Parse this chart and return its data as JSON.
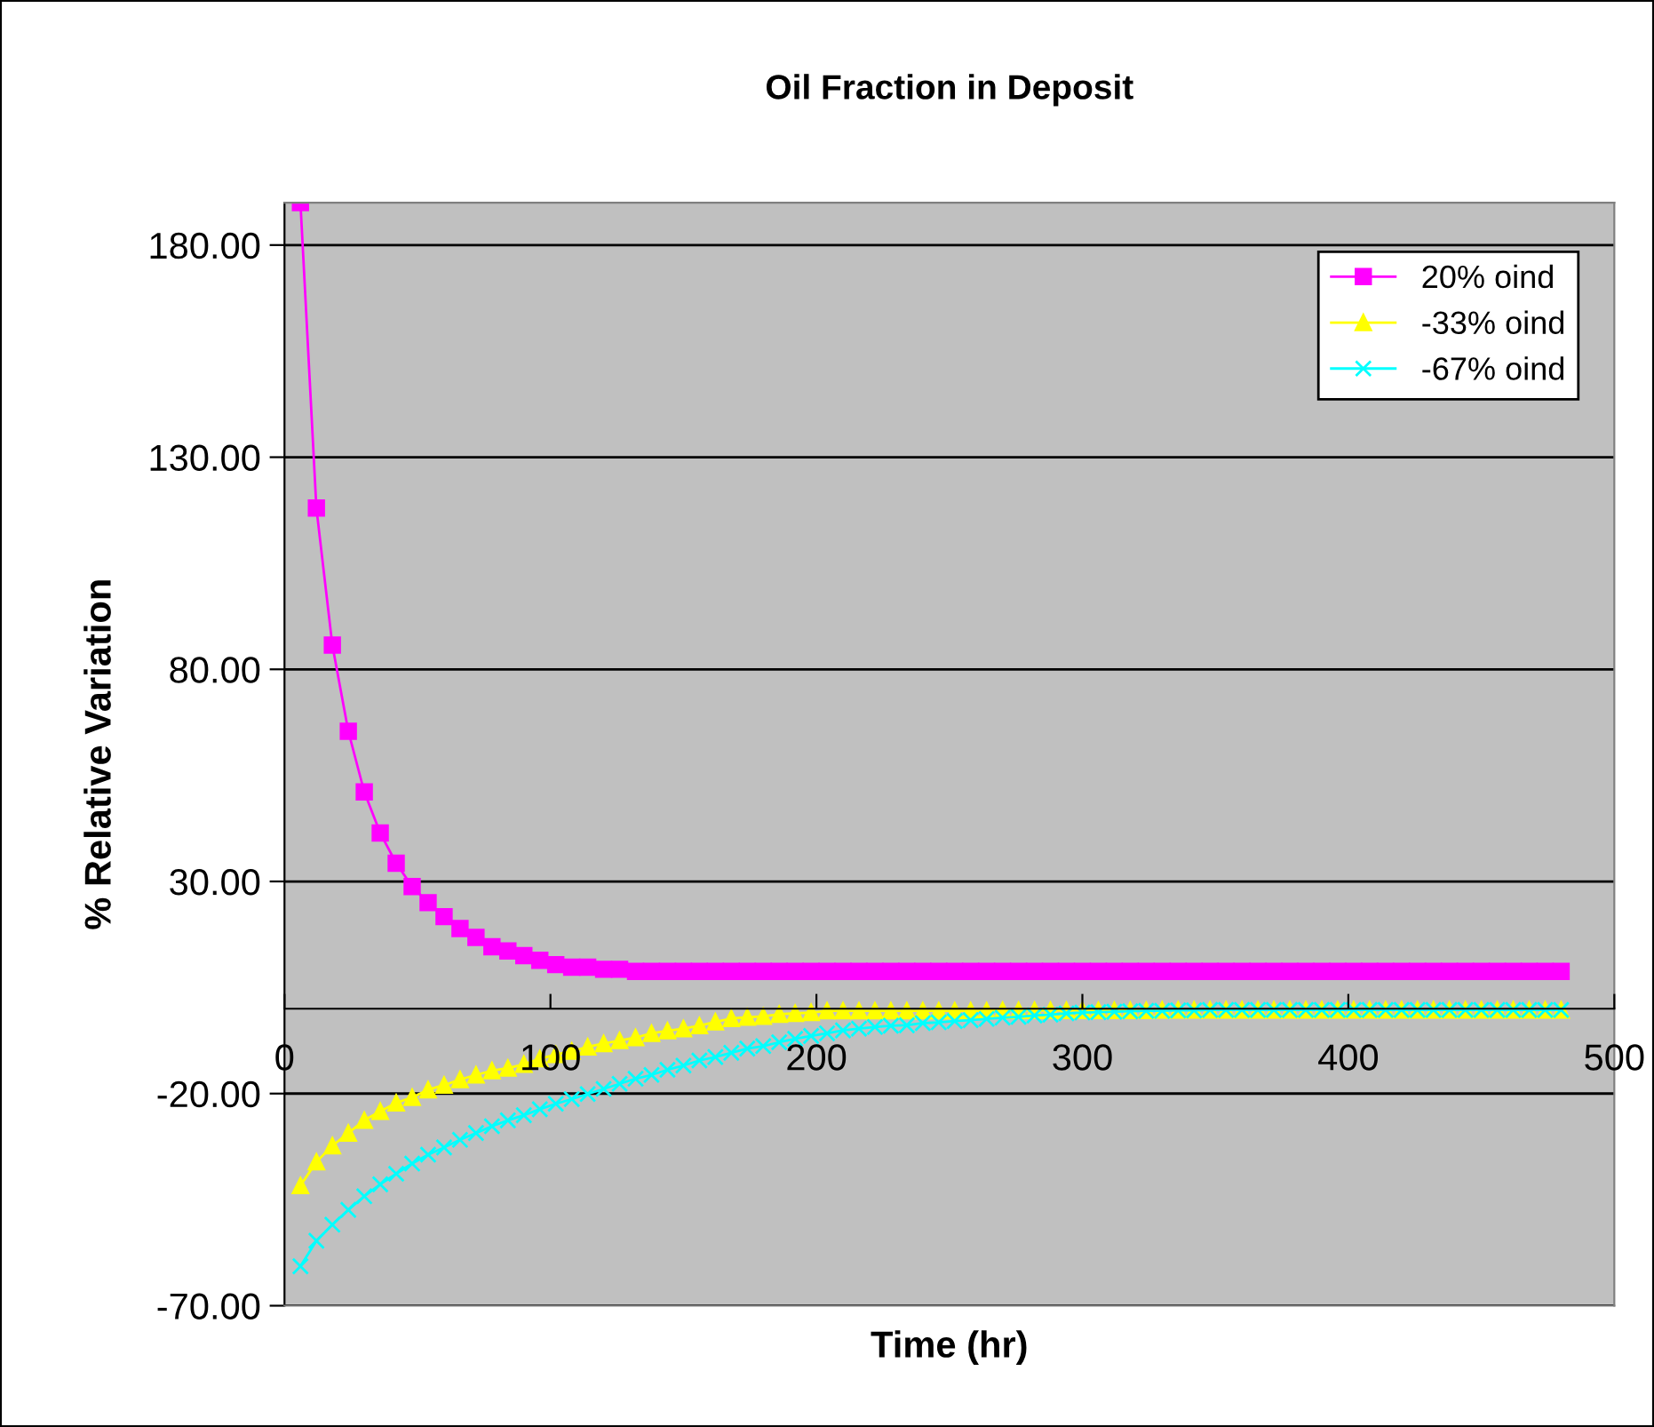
{
  "chart_data": {
    "type": "line",
    "title": "Oil Fraction in Deposit",
    "xlabel": "Time (hr)",
    "ylabel": "% Relative Variation",
    "x": [
      6,
      12,
      18,
      24,
      30,
      36,
      42,
      48,
      54,
      60,
      66,
      72,
      78,
      84,
      90,
      96,
      102,
      108,
      114,
      120,
      126,
      132,
      138,
      144,
      150,
      156,
      162,
      168,
      174,
      180,
      186,
      192,
      198,
      204,
      210,
      216,
      222,
      228,
      234,
      240,
      246,
      252,
      258,
      264,
      270,
      276,
      282,
      288,
      294,
      300,
      306,
      312,
      318,
      324,
      330,
      336,
      342,
      348,
      354,
      360,
      366,
      372,
      378,
      384,
      390,
      396,
      402,
      408,
      414,
      420,
      426,
      432,
      438,
      444,
      450,
      456,
      462,
      468,
      474,
      480
    ],
    "series": [
      {
        "name": "20% oind",
        "color": "#ff00ff",
        "marker": "square",
        "values": [
          190,
          118,
          85.7,
          65.4,
          51.1,
          41.4,
          34.3,
          28.8,
          25.0,
          21.7,
          18.9,
          16.8,
          14.6,
          13.6,
          12.5,
          11.4,
          10.4,
          9.8,
          9.8,
          9.3,
          9.3,
          8.8,
          8.8,
          8.8,
          8.8,
          8.8,
          8.8,
          8.8,
          8.8,
          8.8,
          8.8,
          8.8,
          8.8,
          8.8,
          8.8,
          8.8,
          8.8,
          8.8,
          8.8,
          8.8,
          8.8,
          8.8,
          8.8,
          8.8,
          8.8,
          8.8,
          8.8,
          8.8,
          8.8,
          8.8,
          8.8,
          8.8,
          8.8,
          8.8,
          8.8,
          8.8,
          8.8,
          8.8,
          8.8,
          8.8,
          8.8,
          8.8,
          8.8,
          8.8,
          8.8,
          8.8,
          8.8,
          8.8,
          8.8,
          8.8,
          8.8,
          8.8,
          8.8,
          8.8,
          8.8,
          8.8,
          8.8,
          8.8,
          8.8,
          8.8
        ]
      },
      {
        "name": "-33% oind",
        "color": "#ffff00",
        "marker": "triangle",
        "values": [
          -41.7,
          -36.1,
          -32.3,
          -29.3,
          -26.3,
          -24.2,
          -22.2,
          -20.9,
          -19.1,
          -18.0,
          -16.7,
          -15.6,
          -14.6,
          -14.0,
          -13.1,
          -11.8,
          -10.8,
          -10.0,
          -9.0,
          -8.2,
          -7.5,
          -6.8,
          -5.8,
          -5.2,
          -4.7,
          -4.0,
          -3.1,
          -2.3,
          -2.0,
          -1.8,
          -1.3,
          -1.1,
          -0.9,
          -0.5,
          -0.5,
          -0.5,
          -0.5,
          -0.5,
          -0.5,
          -0.5,
          -0.5,
          -0.5,
          -0.5,
          -0.5,
          -0.4,
          -0.4,
          -0.4,
          -0.4,
          -0.4,
          -0.4,
          -0.4,
          -0.4,
          -0.4,
          -0.4,
          -0.3,
          -0.3,
          -0.3,
          -0.3,
          -0.3,
          -0.3,
          -0.3,
          -0.3,
          -0.3,
          -0.3,
          -0.3,
          -0.3,
          -0.3,
          -0.3,
          -0.3,
          -0.3,
          -0.3,
          -0.3,
          -0.3,
          -0.3,
          -0.3,
          -0.3,
          -0.3,
          -0.3,
          -0.3,
          -0.3
        ]
      },
      {
        "name": "-67% oind",
        "color": "#00ffff",
        "marker": "cross",
        "values": [
          -60.7,
          -54.7,
          -50.9,
          -47.4,
          -44.2,
          -41.4,
          -38.9,
          -36.5,
          -34.4,
          -32.7,
          -30.9,
          -29.3,
          -27.7,
          -26.3,
          -25.1,
          -23.7,
          -22.4,
          -21.3,
          -20.1,
          -18.9,
          -17.7,
          -16.5,
          -15.6,
          -14.4,
          -13.4,
          -12.2,
          -11.4,
          -10.4,
          -9.4,
          -8.8,
          -7.9,
          -7.1,
          -6.4,
          -5.8,
          -5.1,
          -4.7,
          -4.3,
          -4.0,
          -3.9,
          -3.4,
          -3.2,
          -2.9,
          -2.7,
          -2.4,
          -2.1,
          -1.9,
          -1.6,
          -1.4,
          -1.1,
          -0.9,
          -0.8,
          -0.7,
          -0.6,
          -0.5,
          -0.5,
          -0.4,
          -0.4,
          -0.3,
          -0.3,
          -0.3,
          -0.3,
          -0.3,
          -0.3,
          -0.3,
          -0.3,
          -0.3,
          -0.3,
          -0.3,
          -0.3,
          -0.3,
          -0.3,
          -0.3,
          -0.3,
          -0.3,
          -0.3,
          -0.3,
          -0.3,
          -0.3,
          -0.3,
          -0.3
        ]
      }
    ],
    "xlim": [
      0,
      500
    ],
    "xticks": [
      0,
      100,
      200,
      300,
      400,
      500
    ],
    "ylim": [
      -70,
      190
    ],
    "yticks": [
      {
        "value": -70,
        "label": "-70.00"
      },
      {
        "value": -20,
        "label": "-20.00"
      },
      {
        "value": 30,
        "label": "30.00"
      },
      {
        "value": 80,
        "label": "80.00"
      },
      {
        "value": 130,
        "label": "130.00"
      },
      {
        "value": 180,
        "label": "180.00"
      }
    ],
    "grid": "y",
    "legend": "top right",
    "line_style": "solid"
  }
}
